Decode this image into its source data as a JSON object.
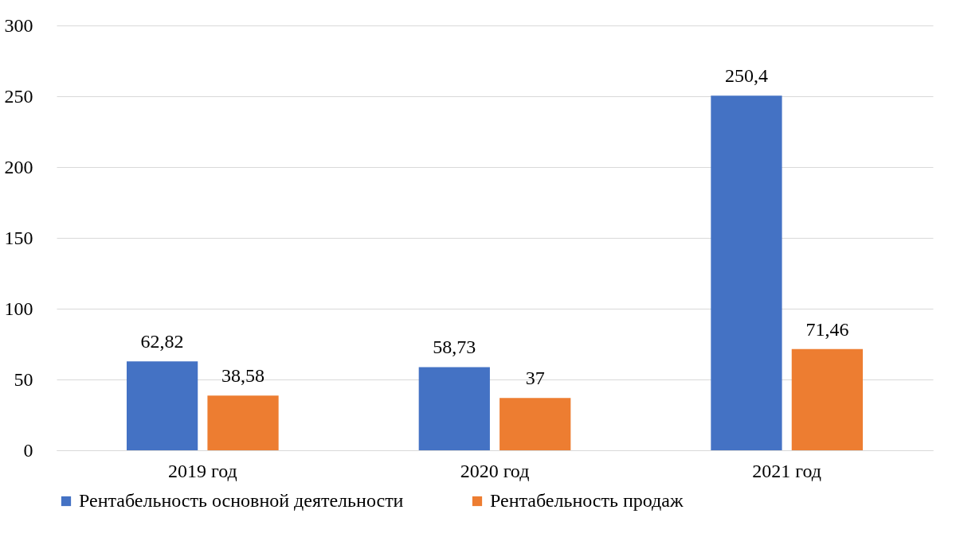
{
  "chart_data": {
    "type": "bar",
    "categories": [
      "2019 год",
      "2020 год",
      "2021 год"
    ],
    "series": [
      {
        "name": "Рентабельность основной деятельности",
        "color": "#4472c4",
        "values": [
          62.82,
          58.73,
          250.4
        ],
        "value_labels": [
          "62,82",
          "58,73",
          "250,4"
        ]
      },
      {
        "name": "Рентабельность продаж",
        "color": "#ed7d31",
        "values": [
          38.58,
          37,
          71.46
        ],
        "value_labels": [
          "38,58",
          "37",
          "71,46"
        ]
      }
    ],
    "ylim": [
      0,
      300
    ],
    "yticks": [
      0,
      50,
      100,
      150,
      200,
      250,
      300
    ],
    "grid": "y",
    "legend": "bottom"
  }
}
